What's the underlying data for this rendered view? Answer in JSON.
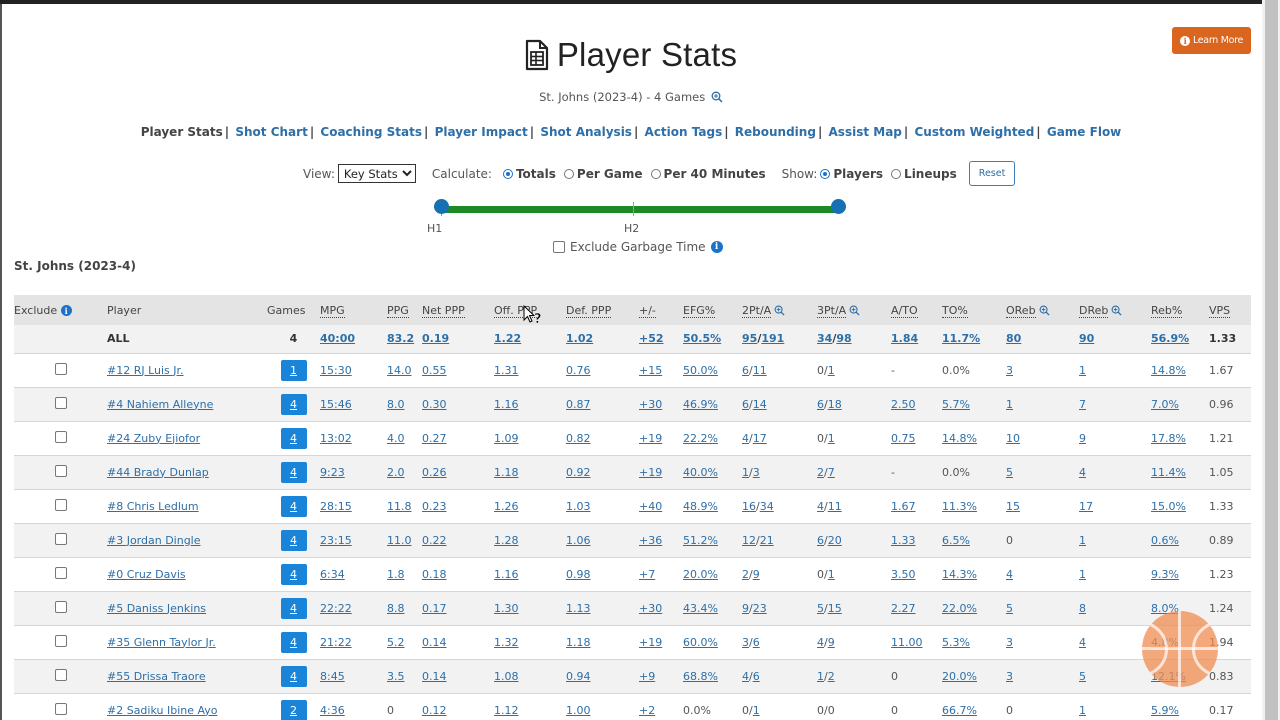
{
  "header": {
    "title": "Player Stats",
    "subtitle": "St. Johns (2023-4) - 4 Games",
    "learn_more": "Learn More"
  },
  "nav": {
    "items": [
      {
        "label": "Player Stats",
        "current": true
      },
      {
        "label": "Shot Chart"
      },
      {
        "label": "Coaching Stats"
      },
      {
        "label": "Player Impact"
      },
      {
        "label": "Shot Analysis"
      },
      {
        "label": "Action Tags"
      },
      {
        "label": "Rebounding"
      },
      {
        "label": "Assist Map"
      },
      {
        "label": "Custom Weighted"
      },
      {
        "label": "Game Flow"
      }
    ]
  },
  "controls": {
    "view_label": "View:",
    "view_value": "Key Stats",
    "calculate_label": "Calculate:",
    "calc_options": [
      "Totals",
      "Per Game",
      "Per 40 Minutes"
    ],
    "calc_selected": "Totals",
    "show_label": "Show:",
    "show_options": [
      "Players",
      "Lineups"
    ],
    "show_selected": "Players",
    "reset": "Reset",
    "slider_labels": [
      "H1",
      "H2"
    ],
    "exclude_garbage": "Exclude Garbage Time"
  },
  "team_label": "St. Johns (2023-4)",
  "table": {
    "headers": [
      "Exclude",
      "Player",
      "Games",
      "MPG",
      "PPG",
      "Net PPP",
      "Off. PPP",
      "Def. PPP",
      "+/-",
      "EFG%",
      "2Pt/A",
      "3Pt/A",
      "A/TO",
      "TO%",
      "OReb",
      "DReb",
      "Reb%",
      "VPS"
    ],
    "all_row": {
      "player": "ALL",
      "games": "4",
      "mpg": "40:00",
      "ppg": "83.2",
      "net": "0.19",
      "off": "1.22",
      "def": "1.02",
      "pm": "+52",
      "efg": "50.5%",
      "two_m": "95",
      "two_a": "191",
      "three_m": "34",
      "three_a": "98",
      "ato": "1.84",
      "to": "11.7%",
      "oreb": "80",
      "dreb": "90",
      "reb": "56.9%",
      "vps": "1.33"
    },
    "rows": [
      {
        "player": "#12 RJ Luis Jr.",
        "games": "1",
        "mpg": "15:30",
        "ppg": "14.0",
        "net": "0.55",
        "off": "1.31",
        "def": "0.76",
        "pm": "+15",
        "efg": "50.0%",
        "two_m": "6",
        "two_a": "11",
        "three_m": "0",
        "three_a": "1",
        "ato": "-",
        "to": "0.0%",
        "oreb": "3",
        "dreb": "1",
        "reb": "14.8%",
        "vps": "1.67"
      },
      {
        "player": "#4 Nahiem Alleyne",
        "games": "4",
        "mpg": "15:46",
        "ppg": "8.0",
        "net": "0.30",
        "off": "1.16",
        "def": "0.87",
        "pm": "+30",
        "efg": "46.9%",
        "two_m": "6",
        "two_a": "14",
        "three_m": "6",
        "three_a": "18",
        "ato": "2.50",
        "to": "5.7%",
        "oreb": "1",
        "dreb": "7",
        "reb": "7.0%",
        "vps": "0.96"
      },
      {
        "player": "#24 Zuby Ejiofor",
        "games": "4",
        "mpg": "13:02",
        "ppg": "4.0",
        "net": "0.27",
        "off": "1.09",
        "def": "0.82",
        "pm": "+19",
        "efg": "22.2%",
        "two_m": "4",
        "two_a": "17",
        "three_m": "0",
        "three_a": "1",
        "ato": "0.75",
        "to": "14.8%",
        "oreb": "10",
        "dreb": "9",
        "reb": "17.8%",
        "vps": "1.21"
      },
      {
        "player": "#44 Brady Dunlap",
        "games": "4",
        "mpg": "9:23",
        "ppg": "2.0",
        "net": "0.26",
        "off": "1.18",
        "def": "0.92",
        "pm": "+19",
        "efg": "40.0%",
        "two_m": "1",
        "two_a": "3",
        "three_m": "2",
        "three_a": "7",
        "ato": "-",
        "to": "0.0%",
        "oreb": "5",
        "dreb": "4",
        "reb": "11.4%",
        "vps": "1.05"
      },
      {
        "player": "#8 Chris Ledlum",
        "games": "4",
        "mpg": "28:15",
        "ppg": "11.8",
        "net": "0.23",
        "off": "1.26",
        "def": "1.03",
        "pm": "+40",
        "efg": "48.9%",
        "two_m": "16",
        "two_a": "34",
        "three_m": "4",
        "three_a": "11",
        "ato": "1.67",
        "to": "11.3%",
        "oreb": "15",
        "dreb": "17",
        "reb": "15.0%",
        "vps": "1.33"
      },
      {
        "player": "#3 Jordan Dingle",
        "games": "4",
        "mpg": "23:15",
        "ppg": "11.0",
        "net": "0.22",
        "off": "1.28",
        "def": "1.06",
        "pm": "+36",
        "efg": "51.2%",
        "two_m": "12",
        "two_a": "21",
        "three_m": "6",
        "three_a": "20",
        "ato": "1.33",
        "to": "6.5%",
        "oreb": "0",
        "dreb": "1",
        "reb": "0.6%",
        "vps": "0.89"
      },
      {
        "player": "#0 Cruz Davis",
        "games": "4",
        "mpg": "6:34",
        "ppg": "1.8",
        "net": "0.18",
        "off": "1.16",
        "def": "0.98",
        "pm": "+7",
        "efg": "20.0%",
        "two_m": "2",
        "two_a": "9",
        "three_m": "0",
        "three_a": "1",
        "ato": "3.50",
        "to": "14.3%",
        "oreb": "4",
        "dreb": "1",
        "reb": "9.3%",
        "vps": "1.23"
      },
      {
        "player": "#5 Daniss Jenkins",
        "games": "4",
        "mpg": "22:22",
        "ppg": "8.8",
        "net": "0.17",
        "off": "1.30",
        "def": "1.13",
        "pm": "+30",
        "efg": "43.4%",
        "two_m": "9",
        "two_a": "23",
        "three_m": "5",
        "three_a": "15",
        "ato": "2.27",
        "to": "22.0%",
        "oreb": "5",
        "dreb": "8",
        "reb": "8.0%",
        "vps": "1.24"
      },
      {
        "player": "#35 Glenn Taylor Jr.",
        "games": "4",
        "mpg": "21:22",
        "ppg": "5.2",
        "net": "0.14",
        "off": "1.32",
        "def": "1.18",
        "pm": "+19",
        "efg": "60.0%",
        "two_m": "3",
        "two_a": "6",
        "three_m": "4",
        "three_a": "9",
        "ato": "11.00",
        "to": "5.3%",
        "oreb": "3",
        "dreb": "4",
        "reb": "4.8%",
        "vps": "1.94"
      },
      {
        "player": "#55 Drissa Traore",
        "games": "4",
        "mpg": "8:45",
        "ppg": "3.5",
        "net": "0.14",
        "off": "1.08",
        "def": "0.94",
        "pm": "+9",
        "efg": "68.8%",
        "two_m": "4",
        "two_a": "6",
        "three_m": "1",
        "three_a": "2",
        "ato": "0",
        "to": "20.0%",
        "oreb": "3",
        "dreb": "5",
        "reb": "12.1%",
        "vps": "0.83"
      },
      {
        "player": "#2 Sadiku Ibine Ayo",
        "games": "2",
        "mpg": "4:36",
        "ppg": "0",
        "net": "0.12",
        "off": "1.12",
        "def": "1.00",
        "pm": "+2",
        "efg": "0.0%",
        "two_m": "0",
        "two_a": "1",
        "three_m": "0",
        "three_a": "0",
        "ato": "0",
        "to": "66.7%",
        "oreb": "0",
        "dreb": "1",
        "reb": "5.9%",
        "vps": "0.17"
      }
    ]
  },
  "colors": {
    "accent_orange": "#d9651e",
    "link_blue": "#2d6fa8",
    "games_badge": "#1a84d8",
    "slider_green": "#1e8a26",
    "slider_handle": "#1670b4"
  }
}
